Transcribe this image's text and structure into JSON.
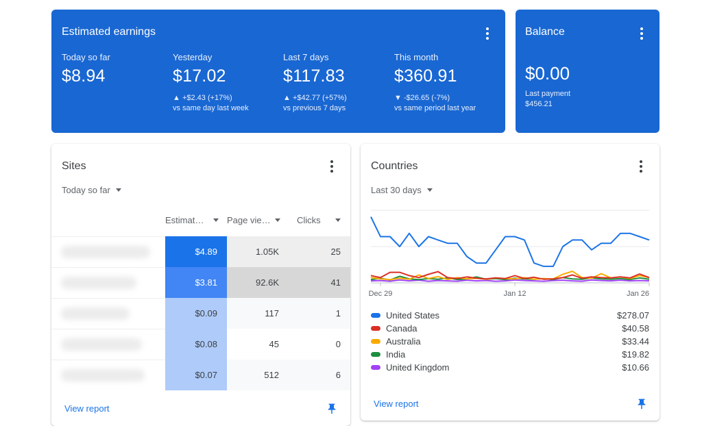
{
  "earnings": {
    "title": "Estimated earnings",
    "metrics": [
      {
        "label": "Today so far",
        "value": "$8.94",
        "change": "",
        "compare": ""
      },
      {
        "label": "Yesterday",
        "value": "$17.02",
        "change": "▲ +$2.43 (+17%)",
        "compare": "vs same day last week"
      },
      {
        "label": "Last 7 days",
        "value": "$117.83",
        "change": "▲ +$42.77 (+57%)",
        "compare": "vs previous 7 days"
      },
      {
        "label": "This month",
        "value": "$360.91",
        "change": "▼ -$26.65 (-7%)",
        "compare": "vs same period last year"
      }
    ]
  },
  "balance": {
    "title": "Balance",
    "value": "$0.00",
    "last_payment_label": "Last payment",
    "last_payment_value": "$456.21"
  },
  "sites": {
    "title": "Sites",
    "range": "Today so far",
    "columns": [
      "Estimat…",
      "Page vie…",
      "Clicks"
    ],
    "rows": [
      {
        "earnings": "$4.89",
        "pageviews": "1.05K",
        "clicks": "25"
      },
      {
        "earnings": "$3.81",
        "pageviews": "92.6K",
        "clicks": "41"
      },
      {
        "earnings": "$0.09",
        "pageviews": "117",
        "clicks": "1"
      },
      {
        "earnings": "$0.08",
        "pageviews": "45",
        "clicks": "0"
      },
      {
        "earnings": "$0.07",
        "pageviews": "512",
        "clicks": "6"
      }
    ],
    "view_report": "View report"
  },
  "countries": {
    "title": "Countries",
    "range": "Last 30 days",
    "view_report": "View report",
    "legend": [
      {
        "name": "United States",
        "value": "$278.07",
        "color": "#1a73e8"
      },
      {
        "name": "Canada",
        "value": "$40.58",
        "color": "#d93025"
      },
      {
        "name": "Australia",
        "value": "$33.44",
        "color": "#f9ab00"
      },
      {
        "name": "India",
        "value": "$19.82",
        "color": "#1e8e3e"
      },
      {
        "name": "United Kingdom",
        "value": "$10.66",
        "color": "#a142f4"
      }
    ]
  },
  "chart_data": {
    "type": "line",
    "x_ticks": [
      "Dec 29",
      "Jan 12",
      "Jan 26"
    ],
    "series": [
      {
        "name": "United States",
        "color": "#1a73e8",
        "values": [
          20,
          14,
          14,
          11,
          15,
          11,
          14,
          13,
          12,
          12,
          8,
          6,
          6,
          10,
          14,
          14,
          13,
          6,
          5,
          5,
          11,
          13,
          13,
          10,
          12,
          12,
          15,
          15,
          14,
          13
        ]
      },
      {
        "name": "Canada",
        "color": "#d93025",
        "values": [
          2.2,
          1.6,
          3.2,
          3.2,
          2.2,
          1.6,
          2.6,
          3.4,
          1.6,
          1.3,
          1.8,
          1.4,
          1.2,
          1.5,
          1.3,
          2.2,
          1.3,
          1.7,
          1.1,
          1.2,
          1.6,
          2.4,
          1.4,
          1.8,
          1.6,
          1.5,
          1.8,
          1.5,
          2.7,
          1.6
        ]
      },
      {
        "name": "Australia",
        "color": "#f9ab00",
        "values": [
          1.6,
          1.2,
          1.0,
          1.4,
          1.1,
          2.4,
          1.3,
          1.9,
          1.0,
          1.6,
          1.2,
          1.4,
          1.1,
          1.5,
          1.3,
          1.2,
          1.6,
          1.1,
          1.3,
          1.2,
          2.6,
          3.5,
          1.6,
          1.4,
          2.8,
          1.5,
          1.8,
          1.3,
          2.2,
          1.6
        ]
      },
      {
        "name": "India",
        "color": "#1e8e3e",
        "values": [
          1.0,
          1.4,
          0.9,
          2.0,
          1.2,
          1.0,
          1.3,
          1.1,
          1.5,
          1.0,
          1.2,
          1.8,
          1.1,
          1.3,
          1.0,
          1.4,
          1.2,
          1.1,
          1.3,
          1.0,
          1.6,
          1.2,
          1.1,
          1.5,
          1.2,
          1.1,
          1.3,
          1.0,
          1.5,
          1.1
        ]
      },
      {
        "name": "United Kingdom",
        "color": "#a142f4",
        "values": [
          0.6,
          0.7,
          0.5,
          0.9,
          0.6,
          0.8,
          0.5,
          0.7,
          0.6,
          0.5,
          0.8,
          0.6,
          0.7,
          0.5,
          0.6,
          0.9,
          0.7,
          0.6,
          0.5,
          0.7,
          0.8,
          0.6,
          0.5,
          0.9,
          0.7,
          0.6,
          0.8,
          0.6,
          0.7,
          0.6
        ]
      }
    ],
    "ylim": [
      0,
      22
    ],
    "grid": true
  }
}
